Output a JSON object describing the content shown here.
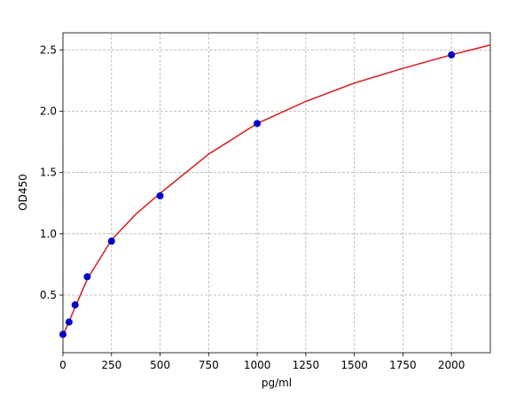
{
  "chart_data": {
    "type": "scatter",
    "x_label": "pg/ml",
    "y_label": "OD450",
    "xlim": [
      0,
      2200
    ],
    "ylim": [
      0.03,
      2.64
    ],
    "xticks": [
      0,
      250,
      500,
      750,
      1000,
      1250,
      1500,
      1750,
      2000
    ],
    "yticks": [
      0.5,
      {
        "value": 1,
        "label": "1.0"
      },
      1.5,
      {
        "value": 2,
        "label": "2.0"
      },
      2.5
    ],
    "grid": true,
    "series": [
      {
        "type": "line",
        "color": "#d62728",
        "x": [
          0,
          62.5,
          125,
          250,
          375,
          500,
          750,
          1000,
          1250,
          1500,
          1750,
          2000,
          2200
        ],
        "values": [
          0.17,
          0.4,
          0.63,
          0.95,
          1.16,
          1.33,
          1.65,
          1.9,
          2.08,
          2.23,
          2.35,
          2.46,
          2.54
        ]
      },
      {
        "type": "scatter",
        "color": "#0000cc",
        "x": [
          0,
          31.25,
          62.5,
          125,
          250,
          500,
          1000,
          2000
        ],
        "values": [
          0.18,
          0.28,
          0.42,
          0.65,
          0.94,
          1.31,
          1.9,
          2.46
        ]
      }
    ]
  }
}
